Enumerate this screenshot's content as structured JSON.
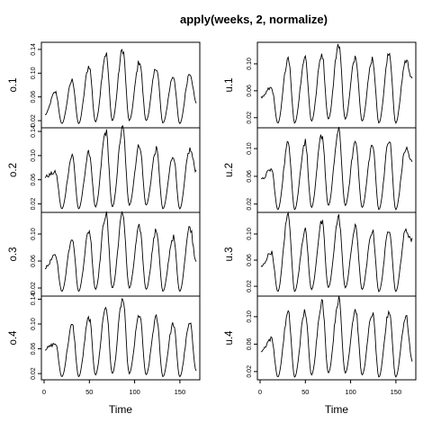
{
  "chart_data": {
    "type": "line",
    "title": "apply(weeks, 2, normalize)",
    "xlabel": "Time",
    "x_range": [
      1,
      168
    ],
    "x_ticks": [
      "0",
      "50",
      "100",
      "150"
    ],
    "panels": [
      {
        "name": "o.1",
        "column": "left",
        "ylim": [
          0.008,
          0.152
        ],
        "y_ticks": [
          "0.02",
          "0.06",
          "0.10",
          "0.14"
        ],
        "peaks": [
          0.068,
          0.088,
          0.112,
          0.133,
          0.14,
          0.12,
          0.11,
          0.095,
          0.101
        ],
        "troughs": [
          0.03,
          0.015,
          0.015,
          0.018,
          0.02,
          0.02,
          0.02,
          0.016,
          0.015,
          0.05
        ]
      },
      {
        "name": "o.2",
        "column": "left",
        "ylim": [
          0.006,
          0.146
        ],
        "y_ticks": [
          "0.02",
          "0.06",
          "0.10",
          "0.14"
        ],
        "peaks": [
          0.072,
          0.1,
          0.105,
          0.14,
          0.145,
          0.118,
          0.11,
          0.1,
          0.11
        ],
        "troughs": [
          0.065,
          0.012,
          0.012,
          0.015,
          0.015,
          0.018,
          0.018,
          0.012,
          0.012,
          0.075
        ]
      },
      {
        "name": "o.3",
        "column": "left",
        "ylim": [
          0.008,
          0.132
        ],
        "y_ticks": [
          "0.02",
          "0.06",
          "0.10"
        ],
        "peaks": [
          0.068,
          0.095,
          0.105,
          0.13,
          0.13,
          0.11,
          0.105,
          0.095,
          0.11
        ],
        "troughs": [
          0.05,
          0.015,
          0.015,
          0.018,
          0.02,
          0.02,
          0.018,
          0.015,
          0.015,
          0.06
        ]
      },
      {
        "name": "o.4",
        "column": "left",
        "ylim": [
          0.01,
          0.145
        ],
        "y_ticks": [
          "0.02",
          "0.06",
          "0.10",
          "0.14"
        ],
        "peaks": [
          0.068,
          0.098,
          0.11,
          0.128,
          0.14,
          0.115,
          0.11,
          0.1,
          0.1
        ],
        "troughs": [
          0.06,
          0.015,
          0.015,
          0.018,
          0.02,
          0.02,
          0.018,
          0.015,
          0.015,
          0.025
        ]
      },
      {
        "name": "u.1",
        "column": "right",
        "ylim": [
          0.005,
          0.132
        ],
        "y_ticks": [
          "0.02",
          "0.06",
          "0.10"
        ],
        "peaks": [
          0.065,
          0.11,
          0.11,
          0.115,
          0.13,
          0.112,
          0.108,
          0.115,
          0.105
        ],
        "troughs": [
          0.05,
          0.012,
          0.012,
          0.015,
          0.018,
          0.018,
          0.015,
          0.012,
          0.012,
          0.08
        ]
      },
      {
        "name": "u.2",
        "column": "right",
        "ylim": [
          0.008,
          0.13
        ],
        "y_ticks": [
          "0.02",
          "0.06",
          "0.10"
        ],
        "peaks": [
          0.07,
          0.108,
          0.11,
          0.12,
          0.125,
          0.11,
          0.105,
          0.112,
          0.1
        ],
        "troughs": [
          0.055,
          0.012,
          0.012,
          0.015,
          0.018,
          0.018,
          0.015,
          0.012,
          0.012,
          0.08
        ]
      },
      {
        "name": "u.3",
        "column": "right",
        "ylim": [
          0.005,
          0.133
        ],
        "y_ticks": [
          "0.02",
          "0.06",
          "0.10"
        ],
        "peaks": [
          0.072,
          0.13,
          0.105,
          0.118,
          0.125,
          0.11,
          0.105,
          0.108,
          0.105
        ],
        "troughs": [
          0.05,
          0.012,
          0.012,
          0.015,
          0.018,
          0.018,
          0.015,
          0.012,
          0.012,
          0.09
        ]
      },
      {
        "name": "u.4",
        "column": "right",
        "ylim": [
          0.008,
          0.13
        ],
        "y_ticks": [
          "0.02",
          "0.06",
          "0.10"
        ],
        "peaks": [
          0.068,
          0.105,
          0.108,
          0.122,
          0.125,
          0.11,
          0.105,
          0.108,
          0.1
        ],
        "troughs": [
          0.05,
          0.012,
          0.012,
          0.015,
          0.018,
          0.018,
          0.015,
          0.012,
          0.012,
          0.035
        ]
      }
    ],
    "line_color": "#000000",
    "grid": false,
    "legend": "none"
  }
}
